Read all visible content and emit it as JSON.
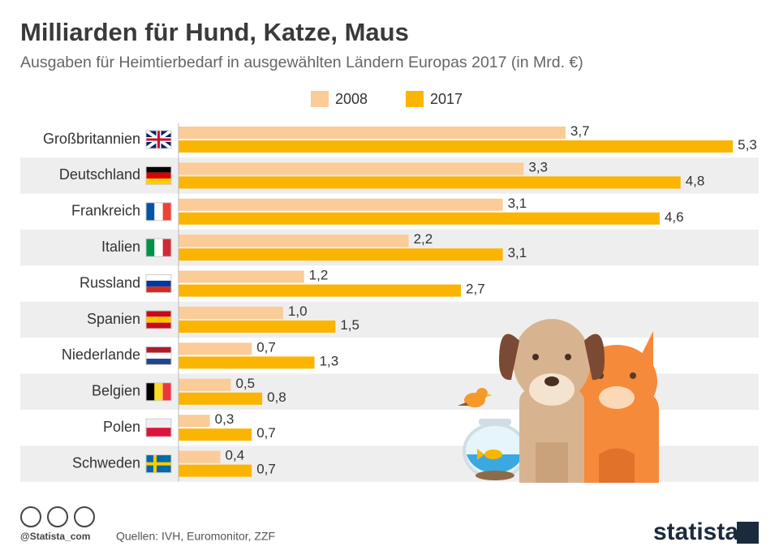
{
  "chart_data": {
    "type": "hbar",
    "title": "Milliarden für Hund, Katze, Maus",
    "subtitle": "Ausgaben für Heimtierbedarf in ausgewählten Ländern Europas 2017 (in Mrd. €)",
    "categories": [
      "Großbritannien",
      "Deutschland",
      "Frankreich",
      "Italien",
      "Russland",
      "Spanien",
      "Niederlande",
      "Belgien",
      "Polen",
      "Schweden"
    ],
    "series": [
      {
        "name": "2008",
        "color": "#fbcb98",
        "values": [
          3.7,
          3.3,
          3.1,
          2.2,
          1.2,
          1.0,
          0.7,
          0.5,
          0.3,
          0.4
        ],
        "value_labels": [
          "3,7",
          "3,3",
          "3,1",
          "2,2",
          "1,2",
          "1,0",
          "0,7",
          "0,5",
          "0,3",
          "0,4"
        ]
      },
      {
        "name": "2017",
        "color": "#fbb500",
        "values": [
          5.3,
          4.8,
          4.6,
          3.1,
          2.7,
          1.5,
          1.3,
          0.8,
          0.7,
          0.7
        ],
        "value_labels": [
          "5,3",
          "4,8",
          "4,6",
          "3,1",
          "2,7",
          "1,5",
          "1,3",
          "0,8",
          "0,7",
          "0,7"
        ]
      }
    ],
    "legend": "top"
  },
  "footer": {
    "handle": "@Statista_com",
    "source": "Quellen: IVH, Euromonitor, ZZF",
    "brand": "statista"
  }
}
